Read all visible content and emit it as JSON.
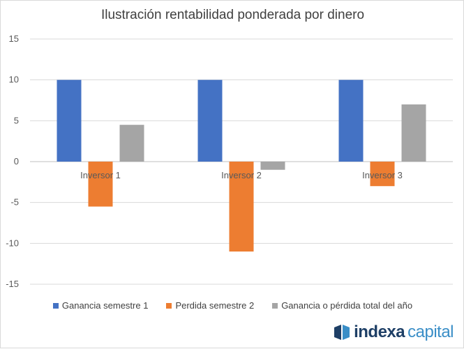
{
  "chart_data": {
    "type": "bar",
    "title": "Ilustración rentabilidad ponderada  por dinero",
    "categories": [
      "Inversor 1",
      "Inversor 2",
      "Inversor 3"
    ],
    "series": [
      {
        "name": "Ganancia semestre 1",
        "values": [
          10,
          10,
          10
        ],
        "color": "#4472c4"
      },
      {
        "name": "Perdida semestre 2",
        "values": [
          -5.5,
          -11,
          -3
        ],
        "color": "#ed7d31"
      },
      {
        "name": "Ganancia o pérdida total del año",
        "values": [
          4.5,
          -1,
          7
        ],
        "color": "#a5a5a5"
      }
    ],
    "ylim": [
      -15,
      15
    ],
    "yticks": [
      15,
      10,
      5,
      0,
      -5,
      -10,
      -15
    ],
    "grid": true,
    "legend": "bottom"
  },
  "logo": {
    "text_a": "indexa",
    "text_b": "capital",
    "color_a": "#1e3f66",
    "color_b": "#3a8ec7"
  }
}
